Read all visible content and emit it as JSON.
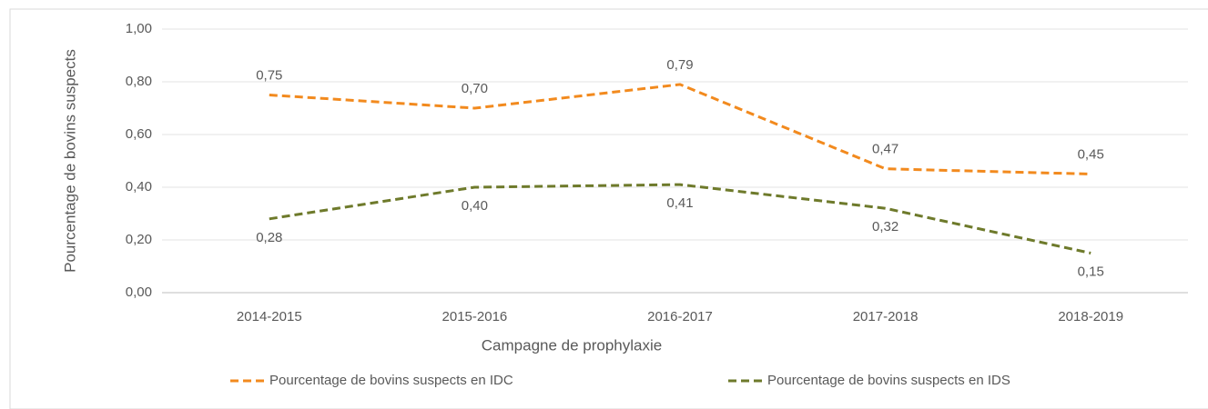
{
  "chart_data": {
    "type": "line",
    "xlabel": "Campagne de prophylaxie",
    "ylabel": "Pourcentage de bovins suspects",
    "categories": [
      "2014-2015",
      "2015-2016",
      "2016-2017",
      "2017-2018",
      "2018-2019"
    ],
    "series": [
      {
        "name": "Pourcentage de bovins suspects en IDC",
        "color": "#f28a1e",
        "values": [
          0.75,
          0.7,
          0.79,
          0.47,
          0.45
        ],
        "value_labels": [
          "0,75",
          "0,70",
          "0,79",
          "0,47",
          "0,45"
        ]
      },
      {
        "name": "Pourcentage de bovins suspects en IDS",
        "color": "#6e7a2b",
        "values": [
          0.28,
          0.4,
          0.41,
          0.32,
          0.15
        ],
        "value_labels": [
          "0,28",
          "0,40",
          "0,41",
          "0,32",
          "0,15"
        ]
      }
    ],
    "ylim": [
      0,
      1
    ],
    "yticks": [
      {
        "value": 0,
        "label": "0,00"
      },
      {
        "value": 0.2,
        "label": "0,20"
      },
      {
        "value": 0.4,
        "label": "0,40"
      },
      {
        "value": 0.6,
        "label": "0,60"
      },
      {
        "value": 0.8,
        "label": "0,80"
      },
      {
        "value": 1,
        "label": "1,00"
      }
    ],
    "grid": true,
    "legend": "bottom",
    "line_style": "dashed"
  }
}
